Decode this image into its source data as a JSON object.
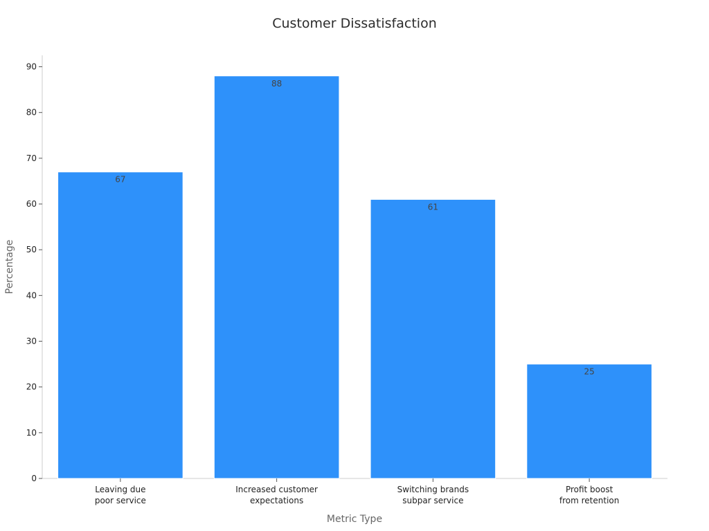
{
  "chart_data": {
    "type": "bar",
    "title": "Customer Dissatisfaction",
    "xlabel": "Metric Type",
    "ylabel": "Percentage",
    "categories": [
      [
        "Leaving due",
        "poor service"
      ],
      [
        "Increased customer",
        "expectations"
      ],
      [
        "Switching brands",
        "subpar service"
      ],
      [
        "Profit boost",
        "from retention"
      ]
    ],
    "values": [
      67,
      88,
      61,
      25
    ],
    "value_labels": [
      "67",
      "88",
      "61",
      "25"
    ],
    "yticks": [
      0,
      10,
      20,
      30,
      40,
      50,
      60,
      70,
      80,
      90
    ],
    "ylim": [
      0,
      92.5
    ],
    "grid": false,
    "legend": "none",
    "colors": {
      "bar": "#2e91fa",
      "bar_edge": "#ffffff"
    }
  }
}
